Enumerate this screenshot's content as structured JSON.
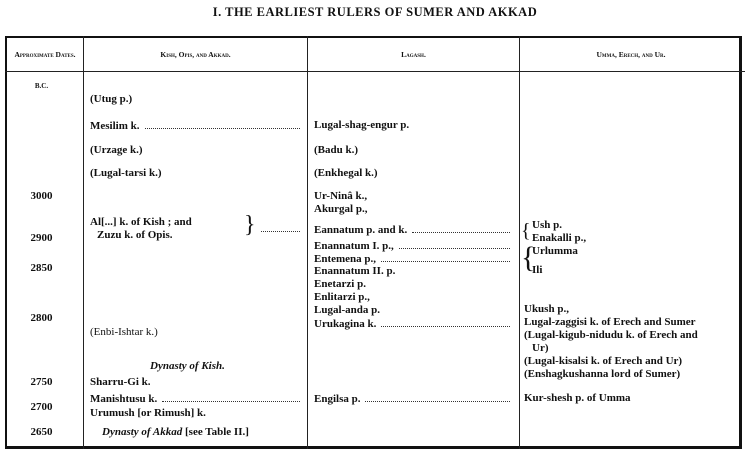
{
  "title": "I. THE EARLIEST RULERS OF SUMER AND AKKAD",
  "headers": {
    "dates": "Approximate Dates.",
    "kish": "Kish, Opis, and Akkad.",
    "lagash": "Lagash.",
    "umma": "Umma, Erech, and Ur."
  },
  "dates": {
    "unit": "B.C.",
    "d3000": "3000",
    "d2900": "2900",
    "d2850": "2850",
    "d2800": "2800",
    "d2750": "2750",
    "d2700": "2700",
    "d2650": "2650"
  },
  "kish": {
    "utug": "(Utug p.)",
    "mesilim": "Mesilim k.",
    "urzage": "(Urzage k.)",
    "lugal_tarsi": "(Lugal-tarsi k.)",
    "al": "Al[...] k. of Kish ; and",
    "zuzu": "Zuzu k. of Opis.",
    "enbi": "(Enbi-Ishtar k.)",
    "dyn_kish": "Dynasty of Kish.",
    "sharru": "Sharru-Gi k.",
    "manishtusu": "Manishtusu k.",
    "urumush": "Urumush [or Rimush] k.",
    "dyn_akkad": "Dynasty of Akkad",
    "akkad_ref": "[see Table II.]"
  },
  "lagash": {
    "lugal_shag": "Lugal-shag-engur p.",
    "badu": "(Badu k.)",
    "enkhegal": "(Enkhegal k.)",
    "urnina": "Ur-Ninâ k.,",
    "akurgal": "Akurgal p.,",
    "eannatum": "Eannatum p. and k.",
    "enannatum1": "Enannatum I. p.,",
    "entemena": "Entemena p.,",
    "enannatum2": "Enannatum II. p.",
    "enetarzi": "Enetarzi p.",
    "enlitarzi": "Enlitarzi p.,",
    "lugal_anda": "Lugal-anda p.",
    "urukagina": "Urukagina k.",
    "engilsa": "Engilsa p."
  },
  "umma": {
    "ush": "Ush p.",
    "enakalli": "Enakalli p.,",
    "urlumma": "Urlumma",
    "ili": "Ili",
    "ukush": "Ukush p.,",
    "zaggisi": "Lugal-zaggisi k. of Erech and Sumer",
    "kigub": "(Lugal-kigub-nidudu k. of Erech and",
    "kigub2": "Ur)",
    "kisalsi": "(Lugal-kisalsi k. of Erech and Ur)",
    "enshag": "(Enshagkushanna lord of Sumer)",
    "kurshesh": "Kur-shesh p. of Umma"
  }
}
